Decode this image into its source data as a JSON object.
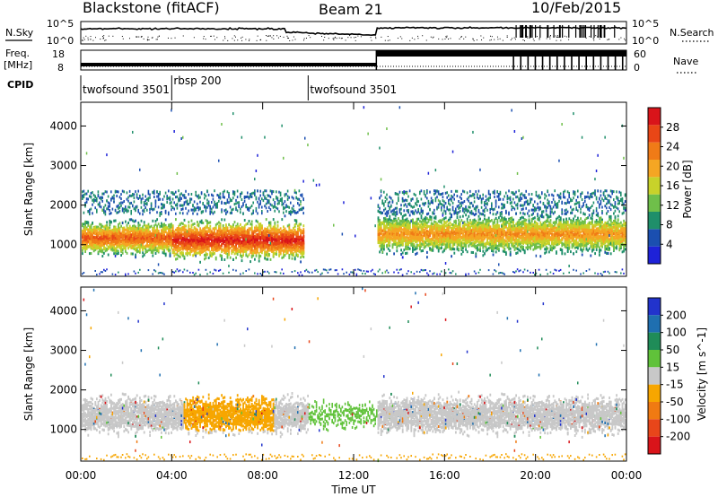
{
  "header": {
    "station": "Blackstone (fitACF)",
    "beam": "Beam 21",
    "date": "10/Feb/2015"
  },
  "labels": {
    "nsky": "N.Sky",
    "nsearch": "N.Search",
    "freq": "Freq.",
    "freq_unit": "[MHz]",
    "nave": "Nave",
    "cpid": "CPID",
    "nsky_hi": "10^5",
    "nsky_lo": "10^0",
    "freq_hi": "18",
    "freq_lo": "8",
    "nave_hi": "60",
    "nave_lo": "0"
  },
  "cpid_segments": [
    {
      "label": "twofsound 3501",
      "start_hour": 0.0
    },
    {
      "label": "rbsp 200",
      "start_hour": 4.0
    },
    {
      "label": "twofsound 3501",
      "start_hour": 10.0
    }
  ],
  "colors": {
    "power_scale": [
      "#1e22d8",
      "#1b4fb0",
      "#1f8f6a",
      "#6fbf4a",
      "#c8d22a",
      "#f5a623",
      "#f07b17",
      "#e94616",
      "#d9141a"
    ],
    "velocity_scale": [
      "#2233cc",
      "#1f6fb0",
      "#1f8c58",
      "#60c23a",
      "#c8c8c8",
      "#f7a600",
      "#f07a12",
      "#e8461a",
      "#d9141a"
    ]
  },
  "chart_data": [
    {
      "type": "line",
      "title": "",
      "series": [
        {
          "name": "N.Sky",
          "values": []
        },
        {
          "name": "N.Search",
          "values": []
        }
      ],
      "ylabel": "",
      "ylim_labels": [
        "10^0",
        "10^5"
      ]
    },
    {
      "type": "line",
      "series": [
        {
          "name": "Freq.",
          "x": [
            0,
            13,
            13,
            24
          ],
          "values": [
            10,
            10,
            18,
            18
          ]
        },
        {
          "name": "Nave",
          "values": []
        }
      ],
      "ylim": [
        8,
        18
      ]
    },
    {
      "type": "heatmap",
      "ylabel": "Slant Range [km]",
      "xlabel": "Time UT",
      "xlim": [
        0,
        24
      ],
      "ylim": [
        200,
        4600
      ],
      "x_ticks": [
        "00:00",
        "04:00",
        "08:00",
        "12:00",
        "16:00",
        "20:00",
        "00:00"
      ],
      "y_ticks": [
        1000,
        2000,
        3000,
        4000
      ],
      "colorbar_label": "Power [dB]",
      "colorbar_ticks": [
        4,
        8,
        12,
        16,
        20,
        24,
        28
      ],
      "colorbar_range": [
        0,
        32
      ],
      "bands": [
        {
          "t0": 0.0,
          "t1": 4.0,
          "r_center": 1200,
          "r_width": 600,
          "peak_db": 26
        },
        {
          "t0": 4.0,
          "t1": 9.8,
          "r_center": 1150,
          "r_width": 700,
          "peak_db": 30
        },
        {
          "t0": 13.0,
          "t1": 24.0,
          "r_center": 1300,
          "r_width": 700,
          "peak_db": 22
        }
      ]
    },
    {
      "type": "heatmap",
      "ylabel": "Slant Range [km]",
      "xlabel": "Time UT",
      "xlim": [
        0,
        24
      ],
      "ylim": [
        200,
        4600
      ],
      "x_ticks": [
        "00:00",
        "04:00",
        "08:00",
        "12:00",
        "16:00",
        "20:00",
        "00:00"
      ],
      "y_ticks": [
        1000,
        2000,
        3000,
        4000
      ],
      "colorbar_label": "Velocity [m s^-1]",
      "colorbar_ticks": [
        200,
        100,
        50,
        15,
        -15,
        -50,
        -100,
        -200
      ]
    }
  ]
}
